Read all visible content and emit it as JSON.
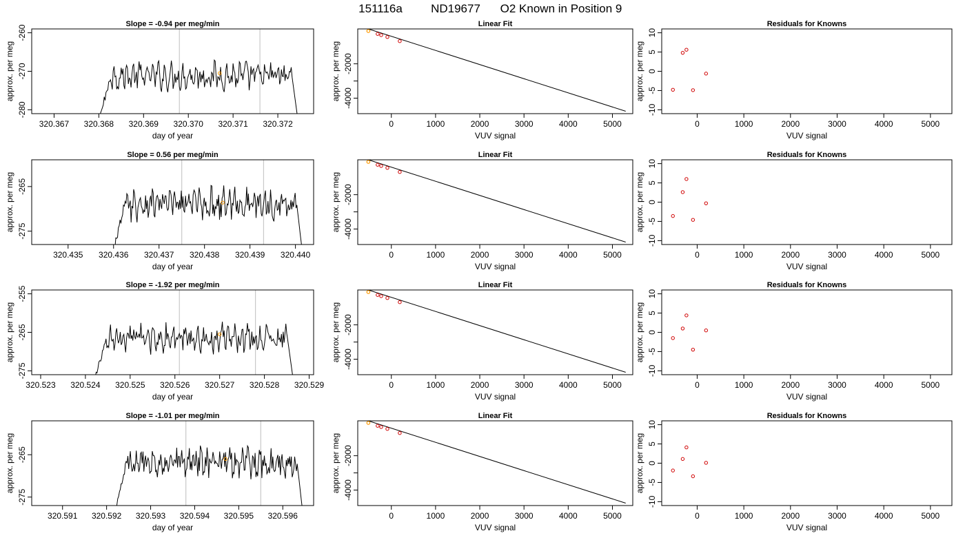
{
  "figure": {
    "title_parts": [
      "151116a",
      "ND19677",
      "O2 Known in Position  9"
    ]
  },
  "colors": {
    "trace": "#000000",
    "known_points": "#d00000",
    "highlight_point": "#ff9900",
    "marker_lines": "#c8c8c8"
  },
  "chart_data": [
    {
      "type": "line",
      "row": 1,
      "title": "Slope =  -0.94  per meg/min",
      "xlabel": "day of year",
      "ylabel": "approx. per meg",
      "xlim": [
        320.3665,
        320.3728
      ],
      "ylim": [
        -281,
        -259
      ],
      "xticks": [
        320.367,
        320.368,
        320.369,
        320.37,
        320.371,
        320.372
      ],
      "xtick_labels": [
        "320.367",
        "320.368",
        "320.369",
        "320.370",
        "320.371",
        "320.372"
      ],
      "yticks": [
        -280,
        -270,
        -260
      ],
      "ytick_labels": [
        "-280",
        "-270",
        "-260"
      ],
      "trace_start": 320.3679,
      "trace_end": 320.3725,
      "trace_level": -271.2,
      "vlines": [
        320.3698,
        320.3716
      ],
      "highlight": [
        320.3707,
        -270.5
      ]
    },
    {
      "type": "scatter",
      "row": 1,
      "title": "Linear Fit",
      "xlabel": "VUV signal",
      "ylabel": "approx. per meg",
      "xlim": [
        -760,
        5460
      ],
      "ylim": [
        -4900,
        30
      ],
      "xticks": [
        0,
        1000,
        2000,
        3000,
        4000,
        5000
      ],
      "xtick_labels": [
        "0",
        "1000",
        "2000",
        "3000",
        "4000",
        "5000"
      ],
      "yticks": [
        -4000,
        -3000,
        -2000
      ],
      "ytick_labels": [
        "-4000",
        "",
        "-2000"
      ],
      "fit_line": [
        [
          -520,
          30
        ],
        [
          5300,
          -4760
        ]
      ],
      "points": [
        [
          -310,
          -260
        ],
        [
          -230,
          -330
        ],
        [
          -90,
          -440
        ],
        [
          190,
          -680
        ]
      ],
      "highlight": [
        -520,
        -90
      ]
    },
    {
      "type": "scatter",
      "row": 1,
      "title": "Residuals for Knowns",
      "xlabel": "VUV signal",
      "ylabel": "approx. per meg",
      "xlim": [
        -760,
        5460
      ],
      "ylim": [
        -11,
        11
      ],
      "xticks": [
        0,
        1000,
        2000,
        3000,
        4000,
        5000
      ],
      "xtick_labels": [
        "0",
        "1000",
        "2000",
        "3000",
        "4000",
        "5000"
      ],
      "yticks": [
        -10,
        -5,
        0,
        5,
        10
      ],
      "ytick_labels": [
        "-10",
        "-5",
        "0",
        "5",
        "10"
      ],
      "points": [
        [
          -520,
          -4.8
        ],
        [
          -310,
          4.8
        ],
        [
          -230,
          5.6
        ],
        [
          -90,
          -4.9
        ],
        [
          190,
          -0.6
        ]
      ]
    },
    {
      "type": "line",
      "row": 2,
      "title": "Slope =  0.56  per meg/min",
      "xlabel": "day of year",
      "ylabel": "approx. per meg",
      "xlim": [
        320.4342,
        320.4404
      ],
      "ylim": [
        -278,
        -259
      ],
      "xticks": [
        320.435,
        320.436,
        320.437,
        320.438,
        320.439,
        320.44
      ],
      "xtick_labels": [
        "320.435",
        "320.436",
        "320.437",
        "320.438",
        "320.439",
        "320.440"
      ],
      "yticks": [
        -275,
        -265
      ],
      "ytick_labels": [
        "-275",
        "-265"
      ],
      "trace_start": 320.4359,
      "trace_end": 320.4402,
      "trace_level": -268.8,
      "vlines": [
        320.4375,
        320.4393
      ],
      "highlight": [
        320.4384,
        -268.6
      ]
    },
    {
      "type": "scatter",
      "row": 2,
      "title": "Linear Fit",
      "xlabel": "VUV signal",
      "ylabel": "approx. per meg",
      "xlim": [
        -760,
        5460
      ],
      "ylim": [
        -4900,
        30
      ],
      "xticks": [
        0,
        1000,
        2000,
        3000,
        4000,
        5000
      ],
      "xtick_labels": [
        "0",
        "1000",
        "2000",
        "3000",
        "4000",
        "5000"
      ],
      "yticks": [
        -4000,
        -3000,
        -2000
      ],
      "ytick_labels": [
        "-4000",
        "",
        "-2000"
      ],
      "fit_line": [
        [
          -520,
          30
        ],
        [
          5300,
          -4760
        ]
      ],
      "points": [
        [
          -310,
          -260
        ],
        [
          -230,
          -330
        ],
        [
          -90,
          -440
        ],
        [
          190,
          -680
        ]
      ],
      "highlight": [
        -520,
        -90
      ]
    },
    {
      "type": "scatter",
      "row": 2,
      "title": "Residuals for Knowns",
      "xlabel": "VUV signal",
      "ylabel": "approx. per meg",
      "xlim": [
        -760,
        5460
      ],
      "ylim": [
        -11,
        11
      ],
      "xticks": [
        0,
        1000,
        2000,
        3000,
        4000,
        5000
      ],
      "xtick_labels": [
        "0",
        "1000",
        "2000",
        "3000",
        "4000",
        "5000"
      ],
      "yticks": [
        -10,
        -5,
        0,
        5,
        10
      ],
      "ytick_labels": [
        "-10",
        "-5",
        "0",
        "5",
        "10"
      ],
      "points": [
        [
          -520,
          -3.6
        ],
        [
          -310,
          2.6
        ],
        [
          -230,
          6.0
        ],
        [
          -90,
          -4.6
        ],
        [
          190,
          -0.3
        ]
      ]
    },
    {
      "type": "line",
      "row": 3,
      "title": "Slope =  -1.92  per meg/min",
      "xlabel": "day of year",
      "ylabel": "approx. per meg",
      "xlim": [
        320.5228,
        320.5291
      ],
      "ylim": [
        -276,
        -254
      ],
      "xticks": [
        320.523,
        320.524,
        320.525,
        320.526,
        320.527,
        320.528,
        320.529
      ],
      "xtick_labels": [
        "320.523",
        "320.524",
        "320.525",
        "320.526",
        "320.527",
        "320.528",
        "320.529"
      ],
      "yticks": [
        -275,
        -265,
        -255
      ],
      "ytick_labels": [
        "-275",
        "-265",
        "-255"
      ],
      "trace_start": 320.5241,
      "trace_end": 320.5287,
      "trace_level": -266.5,
      "vlines": [
        320.5261,
        320.5278
      ],
      "highlight": [
        320.527,
        -265.5
      ]
    },
    {
      "type": "scatter",
      "row": 3,
      "title": "Linear Fit",
      "xlabel": "VUV signal",
      "ylabel": "approx. per meg",
      "xlim": [
        -760,
        5460
      ],
      "ylim": [
        -4900,
        30
      ],
      "xticks": [
        0,
        1000,
        2000,
        3000,
        4000,
        5000
      ],
      "xtick_labels": [
        "0",
        "1000",
        "2000",
        "3000",
        "4000",
        "5000"
      ],
      "yticks": [
        -4000,
        -3000,
        -2000
      ],
      "ytick_labels": [
        "-4000",
        "",
        "-2000"
      ],
      "fit_line": [
        [
          -520,
          30
        ],
        [
          5300,
          -4760
        ]
      ],
      "points": [
        [
          -310,
          -260
        ],
        [
          -230,
          -330
        ],
        [
          -90,
          -440
        ],
        [
          190,
          -680
        ]
      ],
      "highlight": [
        -520,
        -90
      ]
    },
    {
      "type": "scatter",
      "row": 3,
      "title": "Residuals for Knowns",
      "xlabel": "VUV signal",
      "ylabel": "approx. per meg",
      "xlim": [
        -760,
        5460
      ],
      "ylim": [
        -11,
        11
      ],
      "xticks": [
        0,
        1000,
        2000,
        3000,
        4000,
        5000
      ],
      "xtick_labels": [
        "0",
        "1000",
        "2000",
        "3000",
        "4000",
        "5000"
      ],
      "yticks": [
        -10,
        -5,
        0,
        5,
        10
      ],
      "ytick_labels": [
        "-10",
        "-5",
        "0",
        "5",
        "10"
      ],
      "points": [
        [
          -520,
          -1.5
        ],
        [
          -310,
          1.0
        ],
        [
          -230,
          4.4
        ],
        [
          -90,
          -4.5
        ],
        [
          190,
          0.5
        ]
      ]
    },
    {
      "type": "line",
      "row": 4,
      "title": "Slope =  -1.01  per meg/min",
      "xlabel": "day of year",
      "ylabel": "approx. per meg",
      "xlim": [
        320.5903,
        320.5967
      ],
      "ylim": [
        -277,
        -257
      ],
      "xticks": [
        320.591,
        320.592,
        320.593,
        320.594,
        320.595,
        320.596
      ],
      "xtick_labels": [
        "320.591",
        "320.592",
        "320.593",
        "320.594",
        "320.595",
        "320.596"
      ],
      "yticks": [
        -275,
        -265
      ],
      "ytick_labels": [
        "-275",
        "-265"
      ],
      "trace_start": 320.5921,
      "trace_end": 320.5965,
      "trace_level": -266.8,
      "vlines": [
        320.5938,
        320.5955
      ],
      "highlight": [
        320.5947,
        -266.0
      ]
    },
    {
      "type": "scatter",
      "row": 4,
      "title": "Linear Fit",
      "xlabel": "VUV signal",
      "ylabel": "approx. per meg",
      "xlim": [
        -760,
        5460
      ],
      "ylim": [
        -4900,
        30
      ],
      "xticks": [
        0,
        1000,
        2000,
        3000,
        4000,
        5000
      ],
      "xtick_labels": [
        "0",
        "1000",
        "2000",
        "3000",
        "4000",
        "5000"
      ],
      "yticks": [
        -4000,
        -3000,
        -2000
      ],
      "ytick_labels": [
        "-4000",
        "",
        "-2000"
      ],
      "fit_line": [
        [
          -520,
          30
        ],
        [
          5300,
          -4760
        ]
      ],
      "points": [
        [
          -310,
          -260
        ],
        [
          -230,
          -330
        ],
        [
          -90,
          -440
        ],
        [
          190,
          -680
        ]
      ],
      "highlight": [
        -520,
        -90
      ]
    },
    {
      "type": "scatter",
      "row": 4,
      "title": "Residuals for Knowns",
      "xlabel": "VUV signal",
      "ylabel": "approx. per meg",
      "xlim": [
        -760,
        5460
      ],
      "ylim": [
        -11,
        11
      ],
      "xticks": [
        0,
        1000,
        2000,
        3000,
        4000,
        5000
      ],
      "xtick_labels": [
        "0",
        "1000",
        "2000",
        "3000",
        "4000",
        "5000"
      ],
      "yticks": [
        -10,
        -5,
        0,
        5,
        10
      ],
      "ytick_labels": [
        "-10",
        "-5",
        "0",
        "5",
        "10"
      ],
      "points": [
        [
          -520,
          -1.9
        ],
        [
          -310,
          1.1
        ],
        [
          -230,
          4.1
        ],
        [
          -90,
          -3.4
        ],
        [
          190,
          0.1
        ]
      ]
    }
  ]
}
